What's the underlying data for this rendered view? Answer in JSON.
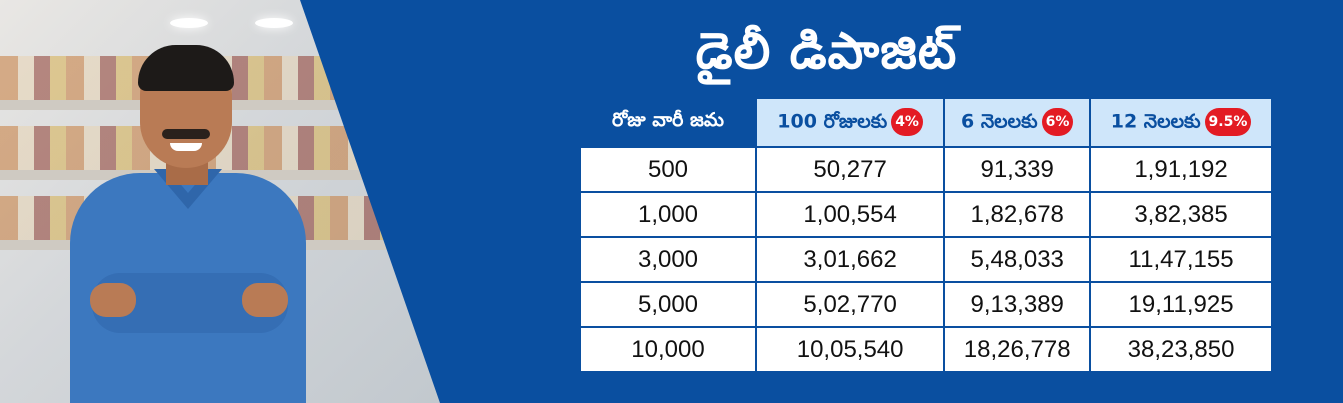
{
  "banner": {
    "title": "డైలీ డిపాజిట్"
  },
  "table": {
    "headers": [
      {
        "label": "రోజు వారీ జమ",
        "badge": ""
      },
      {
        "label": "100 రోజులకు",
        "badge": "4%"
      },
      {
        "label": "6 నెలలకు",
        "badge": "6%"
      },
      {
        "label": "12 నెలలకు",
        "badge": "9.5%"
      }
    ],
    "rows": [
      [
        "500",
        "50,277",
        "91,339",
        "1,91,192"
      ],
      [
        "1,000",
        "1,00,554",
        "1,82,678",
        "3,82,385"
      ],
      [
        "3,000",
        "3,01,662",
        "5,48,033",
        "11,47,155"
      ],
      [
        "5,000",
        "5,02,770",
        "9,13,389",
        "19,11,925"
      ],
      [
        "10,000",
        "10,05,540",
        "18,26,778",
        "38,23,850"
      ]
    ]
  },
  "colors": {
    "brand_blue": "#0a4fa0",
    "header_light": "#cfe6fa",
    "badge_red": "#e31b23"
  }
}
